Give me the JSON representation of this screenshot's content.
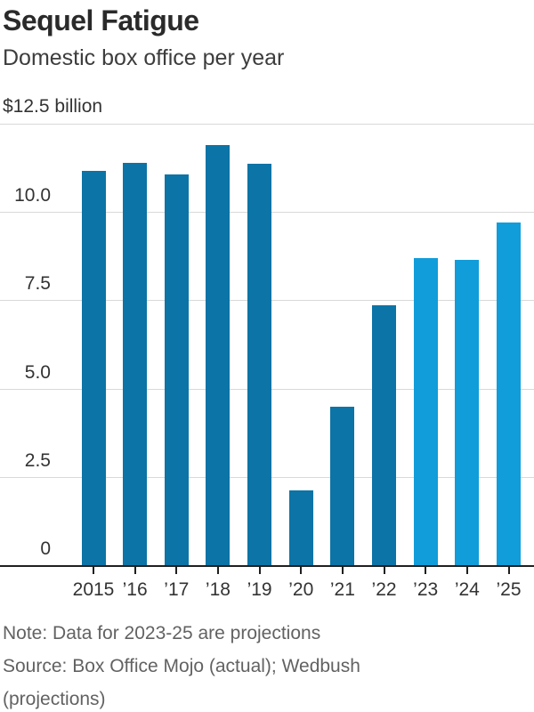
{
  "chart_data": {
    "type": "bar",
    "title": "Sequel Fatigue",
    "subtitle": "Domestic box office per year",
    "unit_label": "$12.5 billion",
    "categories": [
      "2015",
      "’16",
      "’17",
      "’18",
      "’19",
      "’20",
      "’21",
      "’22",
      "’23",
      "’24",
      "’25"
    ],
    "values": [
      11.16,
      11.38,
      11.07,
      11.89,
      11.36,
      2.11,
      4.48,
      7.37,
      8.7,
      8.65,
      9.7
    ],
    "series": [
      {
        "name": "actual",
        "color": "#0c74a6",
        "categories": [
          "2015",
          "’16",
          "’17",
          "’18",
          "’19",
          "’20",
          "’21",
          "’22"
        ]
      },
      {
        "name": "projection",
        "color": "#109dda",
        "categories": [
          "’23",
          "’24",
          "’25"
        ]
      }
    ],
    "projection_start_index": 8,
    "ylim": [
      0,
      12.5
    ],
    "yticks": [
      0,
      2.5,
      5,
      7.5,
      10
    ],
    "ytick_labels": [
      "0",
      "2.5",
      "5.0",
      "7.5",
      "10.0"
    ],
    "grid": true,
    "legend_position": "none",
    "gridline_color": "#d9d9d9",
    "axis_color": "#1f1f1f",
    "note": "Note: Data for 2023-25 are projections",
    "source": "Source: Box Office Mojo (actual); Wedbush (projections)"
  }
}
